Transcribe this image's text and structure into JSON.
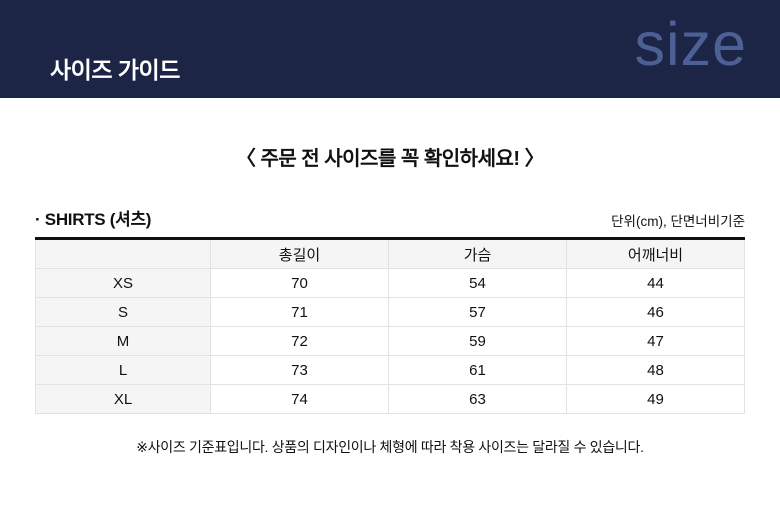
{
  "header": {
    "title": "사이즈 가이드",
    "logo": "size"
  },
  "notice": {
    "text": "〈 주문 전 사이즈를 꼭 확인하세요! 〉"
  },
  "size_table": {
    "label": "· SHIRTS (셔츠)",
    "unit_note": "단위(cm), 단면너비기준",
    "columns": [
      "",
      "총길이",
      "가슴",
      "어깨너비"
    ],
    "rows": [
      {
        "size": "XS",
        "values": [
          "70",
          "54",
          "44"
        ]
      },
      {
        "size": "S",
        "values": [
          "71",
          "57",
          "46"
        ]
      },
      {
        "size": "M",
        "values": [
          "72",
          "59",
          "47"
        ]
      },
      {
        "size": "L",
        "values": [
          "73",
          "61",
          "48"
        ]
      },
      {
        "size": "XL",
        "values": [
          "74",
          "63",
          "49"
        ]
      }
    ]
  },
  "footnote": {
    "text": "※사이즈 기준표입니다. 상품의 디자인이나 체형에 따라 착용 사이즈는 달라질 수 있습니다."
  },
  "colors": {
    "banner_navy": "#1d2547",
    "logo_blue": "#4d6095",
    "table_shaded_bg": "#f5f5f5",
    "table_border": "#e2e2e2",
    "table_top_border": "#111111"
  }
}
